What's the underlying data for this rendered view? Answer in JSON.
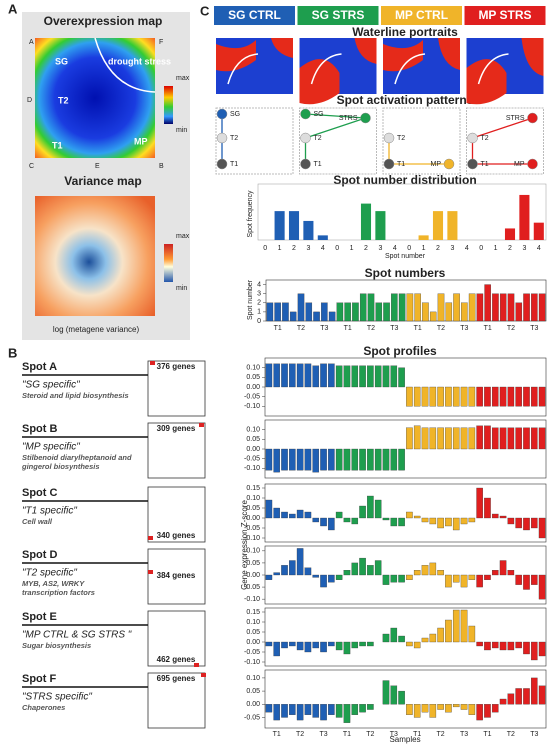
{
  "panel_a": {
    "letter": "A",
    "over_title": "Overexpression map",
    "corners": [
      "A",
      "F",
      "D",
      "C",
      "E",
      "B"
    ],
    "regions": [
      "SG",
      "drought stress",
      "T2",
      "T1",
      "MP"
    ],
    "scale": [
      "max",
      "min"
    ],
    "var_title": "Variance map",
    "var_scale": [
      "max",
      "min"
    ],
    "var_label": "log (metagene variance)"
  },
  "panel_c": {
    "letter": "C",
    "conditions": [
      {
        "name": "SG CTRL",
        "color": "#1f5fb4"
      },
      {
        "name": "SG STRS",
        "color": "#1e9e4e"
      },
      {
        "name": "MP CTRL",
        "color": "#f0b429"
      },
      {
        "name": "MP STRS",
        "color": "#e01f1f"
      }
    ],
    "portraits_title": "Waterline portraits",
    "patterns_title": "Spot activation patterns",
    "patterns": [
      [
        "SG",
        "T2",
        "T1"
      ],
      [
        "SG",
        "STRS",
        "T2",
        "T1"
      ],
      [
        "T2",
        "T1",
        "MP"
      ],
      [
        "STRS",
        "T2",
        "T1",
        "MP"
      ]
    ],
    "sample_groups": [
      "T1",
      "T2",
      "T3"
    ]
  },
  "panel_b": {
    "letter": "B",
    "title": "Spot profiles",
    "y_label": "Gene expression Z-score",
    "x_label": "Samples",
    "sample_groups": [
      "T1",
      "T2",
      "T3"
    ],
    "spots": [
      {
        "name": "Spot A",
        "description": "\"SG specific\"",
        "detail": "Steroid and lipid biosynthesis",
        "genes": "376 genes"
      },
      {
        "name": "Spot B",
        "description": "\"MP specific\"",
        "detail": "Stilbenoid diarylheptanoid and gingerol biosynthesis",
        "genes": "309 genes"
      },
      {
        "name": "Spot C",
        "description": "\"T1 specific\"",
        "detail": "Cell wall",
        "genes": "340 genes"
      },
      {
        "name": "Spot D",
        "description": "\"T2 specific\"",
        "detail": "MYB, AS2, WRKY transcription factors",
        "genes": "384 genes"
      },
      {
        "name": "Spot E",
        "description": "\"MP CTRL & SG STRS \"",
        "detail": "Sugar biosynthesis",
        "genes": "462 genes"
      },
      {
        "name": "Spot F",
        "description": "\"STRS specific\"",
        "detail": "Chaperones",
        "genes": "695 genes"
      }
    ]
  },
  "chart_data": [
    {
      "type": "bar",
      "title": "Spot number distribution",
      "y_label": "Spot frequency",
      "x_label": "Spot number",
      "categories": [
        0,
        1,
        2,
        3,
        4
      ],
      "ylim": [
        0,
        0.9
      ],
      "series": [
        {
          "values": [
            0,
            0.5,
            0.5,
            0.33,
            0.08
          ]
        },
        {
          "values": [
            0,
            0,
            0.63,
            0.5,
            0
          ]
        },
        {
          "values": [
            0,
            0.08,
            0.5,
            0.5,
            0
          ]
        },
        {
          "values": [
            0,
            0,
            0.2,
            0.78,
            0.3
          ]
        }
      ]
    },
    {
      "type": "bar",
      "title": "Spot numbers",
      "y_label": "Spot number",
      "ylim": [
        0,
        4.5
      ],
      "yticks": [
        0,
        1,
        2,
        3,
        4
      ],
      "values": [
        2,
        2,
        2,
        1,
        3,
        2,
        1,
        2,
        1,
        2,
        2,
        2,
        3,
        3,
        2,
        2,
        3,
        3,
        3,
        3,
        2,
        1,
        3,
        2,
        3,
        2,
        3,
        3,
        4,
        3,
        3,
        3,
        2,
        3,
        3,
        3
      ]
    },
    {
      "type": "bar",
      "ylim": [
        -0.15,
        0.15
      ],
      "yticks": [
        {
          "value": -0.1,
          "label": "-0.10"
        },
        {
          "value": -0.05,
          "label": "-0.05"
        },
        {
          "value": 0,
          "label": "0.00"
        },
        {
          "value": 0.05,
          "label": "0.05"
        },
        {
          "value": 0.1,
          "label": "0.10"
        }
      ],
      "values": [
        0.12,
        0.12,
        0.12,
        0.12,
        0.12,
        0.12,
        0.11,
        0.12,
        0.12,
        0.11,
        0.11,
        0.11,
        0.11,
        0.11,
        0.11,
        0.11,
        0.11,
        0.1,
        -0.1,
        -0.1,
        -0.1,
        -0.1,
        -0.1,
        -0.1,
        -0.1,
        -0.1,
        -0.1,
        -0.1,
        -0.1,
        -0.1,
        -0.1,
        -0.1,
        -0.1,
        -0.1,
        -0.1,
        -0.1
      ]
    },
    {
      "type": "bar",
      "ylim": [
        -0.15,
        0.15
      ],
      "yticks": [
        {
          "value": -0.1,
          "label": "-0.10"
        },
        {
          "value": -0.05,
          "label": "-0.05"
        },
        {
          "value": 0,
          "label": "0.00"
        },
        {
          "value": 0.05,
          "label": "0.05"
        },
        {
          "value": 0.1,
          "label": "0.10"
        }
      ],
      "values": [
        -0.11,
        -0.12,
        -0.11,
        -0.11,
        -0.11,
        -0.11,
        -0.12,
        -0.11,
        -0.11,
        -0.11,
        -0.11,
        -0.11,
        -0.11,
        -0.11,
        -0.11,
        -0.11,
        -0.11,
        -0.11,
        0.11,
        0.12,
        0.11,
        0.11,
        0.11,
        0.11,
        0.11,
        0.11,
        0.11,
        0.12,
        0.12,
        0.11,
        0.11,
        0.11,
        0.11,
        0.11,
        0.11,
        0.11
      ]
    },
    {
      "type": "bar",
      "ylim": [
        -0.12,
        0.17
      ],
      "yticks": [
        {
          "value": -0.1,
          "label": "-0.10"
        },
        {
          "value": -0.05,
          "label": "-0.05"
        },
        {
          "value": 0,
          "label": "0.00"
        },
        {
          "value": 0.05,
          "label": "0.05"
        },
        {
          "value": 0.1,
          "label": "0.10"
        },
        {
          "value": 0.15,
          "label": "0.15"
        }
      ],
      "values": [
        0.09,
        0.05,
        0.03,
        0.02,
        0.04,
        0.03,
        -0.02,
        -0.04,
        -0.06,
        0.03,
        -0.02,
        -0.03,
        0.06,
        0.11,
        0.09,
        -0.01,
        -0.04,
        -0.04,
        0.03,
        0.01,
        -0.02,
        -0.03,
        -0.05,
        -0.04,
        -0.06,
        -0.03,
        -0.02,
        0.15,
        0.1,
        0.02,
        0.01,
        -0.03,
        -0.05,
        -0.06,
        -0.05,
        -0.1
      ]
    },
    {
      "type": "bar",
      "ylim": [
        -0.12,
        0.12
      ],
      "yticks": [
        {
          "value": -0.1,
          "label": "-0.10"
        },
        {
          "value": -0.05,
          "label": "-0.05"
        },
        {
          "value": 0,
          "label": "0.00"
        },
        {
          "value": 0.05,
          "label": "0.05"
        },
        {
          "value": 0.1,
          "label": "0.10"
        }
      ],
      "values": [
        -0.02,
        0.01,
        0.04,
        0.06,
        0.11,
        0.03,
        -0.01,
        -0.05,
        -0.03,
        -0.02,
        0.02,
        0.05,
        0.07,
        0.04,
        0.06,
        -0.04,
        -0.03,
        -0.03,
        -0.02,
        0.02,
        0.04,
        0.05,
        0.02,
        -0.05,
        -0.03,
        -0.05,
        -0.02,
        -0.05,
        -0.02,
        0.02,
        0.06,
        0.02,
        -0.04,
        -0.06,
        -0.04,
        -0.1
      ]
    },
    {
      "type": "bar",
      "ylim": [
        -0.12,
        0.17
      ],
      "yticks": [
        {
          "value": -0.1,
          "label": "-0.10"
        },
        {
          "value": -0.05,
          "label": "-0.05"
        },
        {
          "value": 0,
          "label": "0.00"
        },
        {
          "value": 0.05,
          "label": "0.05"
        },
        {
          "value": 0.1,
          "label": "0.10"
        },
        {
          "value": 0.15,
          "label": "0.15"
        }
      ],
      "values": [
        -0.02,
        -0.07,
        -0.03,
        -0.02,
        -0.04,
        -0.05,
        -0.03,
        -0.05,
        -0.02,
        -0.04,
        -0.06,
        -0.03,
        -0.02,
        -0.02,
        0,
        0.04,
        0.07,
        0.03,
        -0.02,
        -0.03,
        0.02,
        0.04,
        0.07,
        0.11,
        0.16,
        0.16,
        0.08,
        -0.02,
        -0.04,
        -0.03,
        -0.04,
        -0.04,
        -0.03,
        -0.06,
        -0.09,
        -0.07
      ]
    },
    {
      "type": "bar",
      "ylim": [
        -0.09,
        0.13
      ],
      "yticks": [
        {
          "value": -0.05,
          "label": "-0.05"
        },
        {
          "value": 0,
          "label": "0.00"
        },
        {
          "value": 0.05,
          "label": "0.05"
        },
        {
          "value": 0.1,
          "label": "0.10"
        }
      ],
      "values": [
        -0.03,
        -0.06,
        -0.05,
        -0.04,
        -0.06,
        -0.04,
        -0.05,
        -0.06,
        -0.04,
        -0.05,
        -0.07,
        -0.04,
        -0.03,
        -0.02,
        0,
        0.09,
        0.07,
        0.05,
        -0.04,
        -0.05,
        -0.03,
        -0.05,
        -0.02,
        -0.03,
        -0.01,
        -0.02,
        -0.04,
        -0.06,
        -0.05,
        -0.03,
        0.02,
        0.04,
        0.06,
        0.06,
        0.1,
        0.07
      ]
    }
  ]
}
